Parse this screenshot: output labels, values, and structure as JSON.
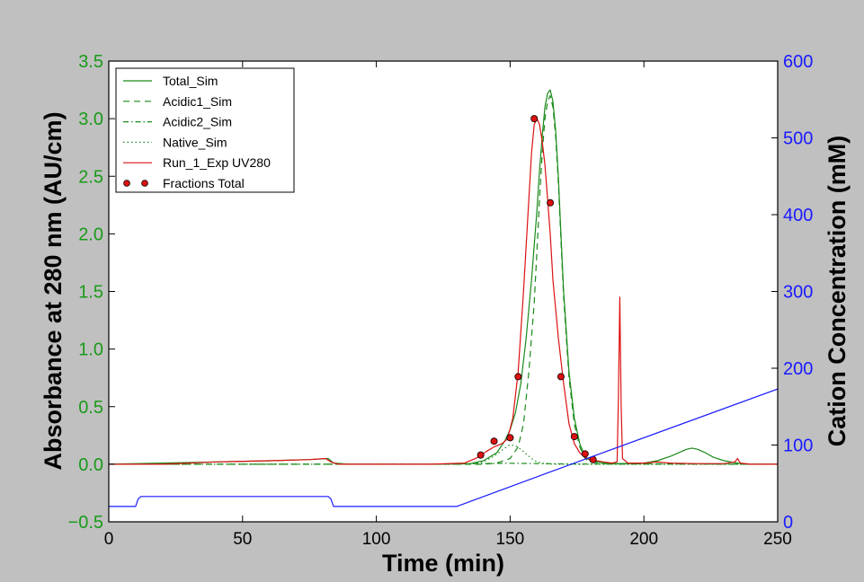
{
  "chart_data": {
    "type": "line",
    "xlabel": "Time (min)",
    "ylabel_left": "Absorbance at 280 nm (AU/cm)",
    "ylabel_right": "Cation Concentration (mM)",
    "xlim": [
      0,
      250
    ],
    "ylim_left": [
      -0.5,
      3.5
    ],
    "ylim_right": [
      0,
      600
    ],
    "x_ticks": [
      "0",
      "50",
      "100",
      "150",
      "200",
      "250"
    ],
    "x_tick_values": [
      0,
      50,
      100,
      150,
      200,
      250
    ],
    "y_left_ticks": [
      "−0.5",
      "0.0",
      "0.5",
      "1.0",
      "1.5",
      "2.0",
      "2.5",
      "3.0",
      "3.5"
    ],
    "y_left_tick_values": [
      -0.5,
      0.0,
      0.5,
      1.0,
      1.5,
      2.0,
      2.5,
      3.0,
      3.5
    ],
    "y_right_ticks": [
      "0",
      "100",
      "200",
      "300",
      "400",
      "500",
      "600"
    ],
    "y_right_tick_values": [
      0,
      100,
      200,
      300,
      400,
      500,
      600
    ],
    "grid": false,
    "legend_position": "top-left",
    "colors": {
      "left_axis": "#1a9a1a",
      "right_axis": "#1a1aff",
      "sim": "#1a8a1a",
      "exp": "#dd1111",
      "cation": "#1a1aff"
    },
    "series": [
      {
        "name": "Total_Sim",
        "axis": "left",
        "style": "solid",
        "color": "#1a8a1a",
        "x": [
          0,
          20,
          40,
          60,
          75,
          82,
          84,
          90,
          120,
          135,
          140,
          145,
          148,
          150,
          152,
          154,
          156,
          158,
          160,
          161,
          162,
          163,
          164,
          165,
          166,
          167,
          168,
          169,
          170,
          172,
          174,
          176,
          178,
          180,
          185,
          190,
          200,
          205,
          210,
          213,
          216,
          218,
          220,
          223,
          226,
          230,
          235,
          240,
          250
        ],
        "y": [
          0.0,
          0.01,
          0.02,
          0.03,
          0.04,
          0.05,
          0.01,
          0.0,
          0.0,
          0.005,
          0.03,
          0.1,
          0.2,
          0.3,
          0.45,
          0.7,
          1.1,
          1.6,
          2.2,
          2.55,
          2.85,
          3.1,
          3.22,
          3.25,
          3.15,
          2.9,
          2.5,
          2.0,
          1.5,
          0.8,
          0.4,
          0.18,
          0.07,
          0.03,
          0.01,
          0.005,
          0.01,
          0.03,
          0.07,
          0.1,
          0.13,
          0.14,
          0.13,
          0.1,
          0.06,
          0.03,
          0.01,
          0.0,
          0.0
        ]
      },
      {
        "name": "Acidic1_Sim",
        "axis": "left",
        "style": "dashed",
        "color": "#1a8a1a",
        "x": [
          0,
          140,
          145,
          150,
          153,
          155,
          157,
          159,
          160,
          161,
          162,
          163,
          164,
          165,
          166,
          167,
          168,
          169,
          170,
          172,
          174,
          176,
          178,
          180,
          185,
          250
        ],
        "y": [
          0.0,
          0.0,
          0.01,
          0.05,
          0.15,
          0.35,
          0.8,
          1.4,
          1.85,
          2.3,
          2.7,
          3.0,
          3.15,
          3.2,
          3.1,
          2.85,
          2.45,
          1.95,
          1.45,
          0.75,
          0.35,
          0.15,
          0.05,
          0.02,
          0.005,
          0.0
        ]
      },
      {
        "name": "Acidic2_Sim",
        "axis": "left",
        "style": "dashdot",
        "color": "#1a8a1a",
        "x": [
          0,
          120,
          130,
          140,
          150,
          160,
          170,
          180,
          250
        ],
        "y": [
          0.0,
          0.0,
          0.003,
          0.006,
          0.008,
          0.006,
          0.003,
          0.001,
          0.0
        ]
      },
      {
        "name": "Native_Sim",
        "axis": "left",
        "style": "dotted",
        "color": "#1a8a1a",
        "x": [
          0,
          135,
          140,
          144,
          148,
          150,
          152,
          154,
          156,
          158,
          160,
          163,
          166,
          250
        ],
        "y": [
          0.0,
          0.0,
          0.02,
          0.07,
          0.14,
          0.17,
          0.16,
          0.13,
          0.09,
          0.05,
          0.02,
          0.005,
          0.0,
          0.0
        ]
      },
      {
        "name": "Run_1_Exp UV280",
        "axis": "left",
        "style": "solid",
        "color": "#dd1111",
        "x": [
          0,
          20,
          40,
          60,
          75,
          81,
          83,
          86,
          100,
          120,
          133,
          138,
          141,
          144,
          147,
          149,
          151,
          153,
          155,
          157,
          158,
          159,
          160,
          161,
          162,
          163,
          164,
          165,
          166,
          168,
          170,
          172,
          174,
          176,
          178,
          180,
          185,
          188,
          190,
          190.5,
          191,
          191.5,
          192,
          194,
          200,
          205,
          210,
          220,
          230,
          234,
          235,
          236,
          240,
          250
        ],
        "y": [
          0.0,
          0.0,
          0.02,
          0.03,
          0.04,
          0.05,
          0.02,
          0.0,
          0.0,
          0.0,
          0.01,
          0.06,
          0.11,
          0.15,
          0.18,
          0.22,
          0.4,
          0.8,
          1.5,
          2.3,
          2.7,
          2.95,
          3.0,
          2.95,
          2.8,
          2.6,
          2.3,
          2.0,
          1.6,
          1.1,
          0.7,
          0.35,
          0.18,
          0.1,
          0.06,
          0.04,
          0.02,
          0.01,
          0.02,
          0.6,
          1.45,
          0.5,
          0.05,
          0.01,
          0.01,
          0.02,
          0.01,
          0.005,
          0.005,
          0.02,
          0.05,
          0.01,
          0.0,
          0.0
        ]
      },
      {
        "name": "Fractions Total",
        "axis": "left",
        "style": "markers",
        "color": "#dd1111",
        "x": [
          139,
          144,
          150,
          153,
          159,
          165,
          169,
          174,
          178,
          181
        ],
        "y": [
          0.08,
          0.2,
          0.23,
          0.76,
          3.0,
          2.27,
          0.76,
          0.24,
          0.09,
          0.04
        ]
      },
      {
        "name": "Cation Concentration",
        "axis": "right",
        "style": "solid",
        "color": "#1a1aff",
        "x": [
          0,
          10,
          11,
          12,
          82,
          83,
          84,
          130,
          165,
          250
        ],
        "y": [
          20,
          20,
          30,
          33,
          33,
          30,
          20,
          20,
          65,
          173
        ]
      }
    ],
    "legend": [
      "Total_Sim",
      "Acidic1_Sim",
      "Acidic2_Sim",
      "Native_Sim",
      "Run_1_Exp UV280",
      "Fractions Total"
    ]
  }
}
